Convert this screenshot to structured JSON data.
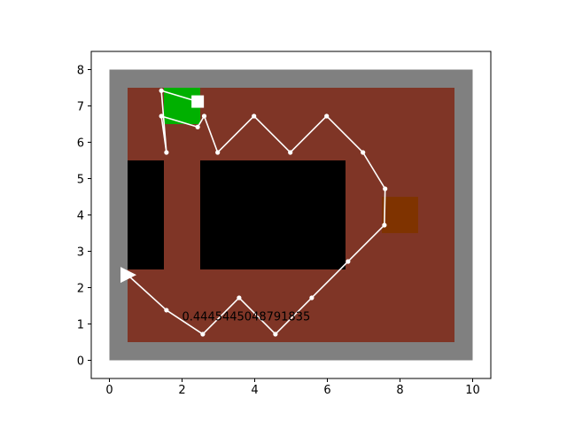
{
  "chart_data": {
    "type": "grid-world",
    "xlim": [
      -0.5,
      10.5
    ],
    "ylim": [
      -0.5,
      8.5
    ],
    "xticks": [
      "0",
      "2",
      "4",
      "6",
      "8",
      "10"
    ],
    "yticks": [
      "0",
      "1",
      "2",
      "3",
      "4",
      "5",
      "6",
      "7",
      "8"
    ],
    "grid": false,
    "colors": {
      "wall": "#808080",
      "floor": "#7f3526",
      "obstacle": "#000000",
      "goal": "#00b000",
      "target": "#7f3300",
      "path": "#ffffff"
    },
    "cells": {
      "outer_wall": {
        "x": [
          0,
          10
        ],
        "y": [
          0,
          8
        ]
      },
      "floor": {
        "x": [
          0.5,
          9.5
        ],
        "y": [
          0.5,
          7.5
        ]
      },
      "obstacles": [
        {
          "x": [
            0.5,
            1.5
          ],
          "y": [
            2.5,
            5.5
          ]
        },
        {
          "x": [
            2.5,
            6.5
          ],
          "y": [
            2.5,
            5.5
          ]
        }
      ],
      "goal": {
        "x": [
          1.5,
          2.5
        ],
        "y": [
          6.5,
          7.5
        ]
      },
      "target": {
        "x": [
          7.5,
          8.5
        ],
        "y": [
          3.5,
          4.5
        ]
      }
    },
    "path": [
      [
        0.5,
        2.35
      ],
      [
        1.57,
        1.38
      ],
      [
        2.57,
        0.72
      ],
      [
        3.57,
        1.72
      ],
      [
        4.57,
        0.72
      ],
      [
        5.57,
        1.72
      ],
      [
        6.57,
        2.72
      ],
      [
        7.57,
        3.72
      ],
      [
        7.59,
        4.72
      ],
      [
        6.98,
        5.72
      ],
      [
        5.98,
        6.72
      ],
      [
        4.98,
        5.72
      ],
      [
        3.98,
        6.72
      ],
      [
        2.98,
        5.72
      ],
      [
        2.61,
        6.72
      ],
      [
        2.43,
        6.42
      ],
      [
        1.43,
        6.72
      ],
      [
        1.57,
        5.72
      ],
      [
        1.43,
        7.42
      ],
      [
        2.43,
        7.12
      ]
    ],
    "agent": {
      "x": 0.5,
      "y": 2.35,
      "heading": "right"
    },
    "block": {
      "x": 2.43,
      "y": 7.12
    },
    "annotation": {
      "text": "0.4445445048791835",
      "x": 2.0,
      "y": 1.1
    }
  }
}
